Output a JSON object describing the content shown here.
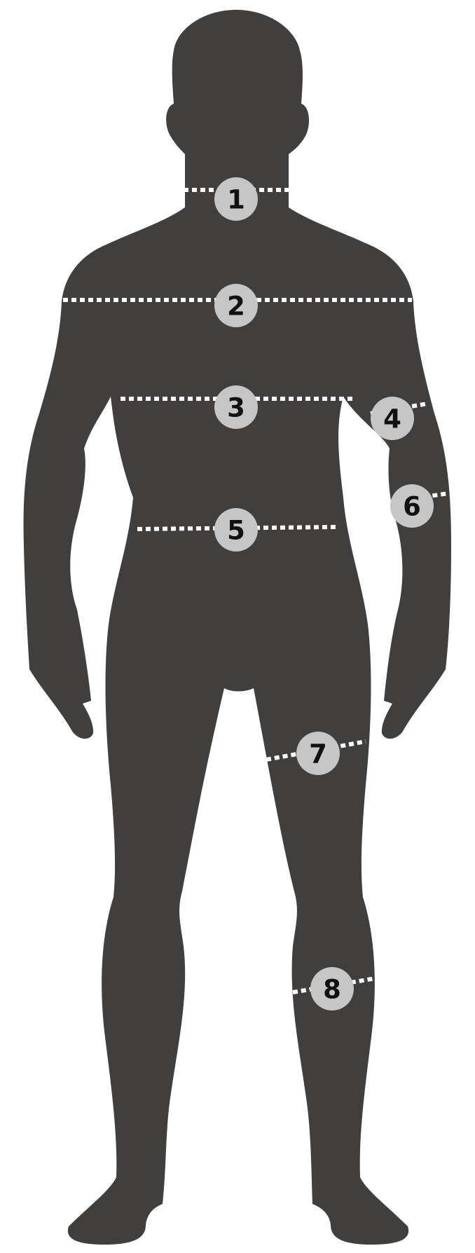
{
  "colors": {
    "silhouette": "#403f3e",
    "marker_fill": "#c6c6c6",
    "marker_text": "#111111",
    "measure_line": "#ffffff",
    "background": "#ffffff"
  },
  "markers": [
    {
      "label": "1"
    },
    {
      "label": "2"
    },
    {
      "label": "3"
    },
    {
      "label": "4"
    },
    {
      "label": "5"
    },
    {
      "label": "6"
    },
    {
      "label": "7"
    },
    {
      "label": "8"
    }
  ]
}
